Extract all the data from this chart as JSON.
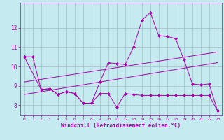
{
  "background_color": "#c5eaf0",
  "grid_color": "#aab8cc",
  "line_color": "#aa00aa",
  "xlabel": "Windchill (Refroidissement éolien,°C)",
  "xlim": [
    -0.5,
    23.5
  ],
  "ylim": [
    7.5,
    13.3
  ],
  "yticks": [
    8,
    9,
    10,
    11,
    12
  ],
  "xticks": [
    0,
    1,
    2,
    3,
    4,
    5,
    6,
    7,
    8,
    9,
    10,
    11,
    12,
    13,
    14,
    15,
    16,
    17,
    18,
    19,
    20,
    21,
    22,
    23
  ],
  "line1_x": [
    0,
    1,
    2,
    3,
    4,
    5,
    6,
    7,
    8,
    9,
    10,
    11,
    12,
    13,
    14,
    15,
    16,
    17,
    18,
    19,
    20,
    21,
    22,
    23
  ],
  "line1_y": [
    10.5,
    10.5,
    8.8,
    8.85,
    8.55,
    8.7,
    8.6,
    8.1,
    8.1,
    9.2,
    10.2,
    10.15,
    10.1,
    11.0,
    12.4,
    12.8,
    11.6,
    11.55,
    11.45,
    10.35,
    9.1,
    9.05,
    9.1,
    7.7
  ],
  "line2_x": [
    0,
    2,
    3,
    4,
    5,
    6,
    7,
    8,
    9,
    10,
    11,
    12,
    13,
    14,
    15,
    16,
    17,
    18,
    19,
    20,
    21,
    22,
    23
  ],
  "line2_y": [
    10.5,
    8.8,
    8.85,
    8.55,
    8.7,
    8.6,
    8.1,
    8.1,
    8.6,
    8.6,
    7.9,
    8.6,
    8.55,
    8.5,
    8.5,
    8.5,
    8.5,
    8.5,
    8.5,
    8.5,
    8.5,
    8.5,
    7.7
  ],
  "trend1_x": [
    0,
    23
  ],
  "trend1_y": [
    9.2,
    10.75
  ],
  "trend2_x": [
    0,
    23
  ],
  "trend2_y": [
    8.55,
    10.2
  ]
}
